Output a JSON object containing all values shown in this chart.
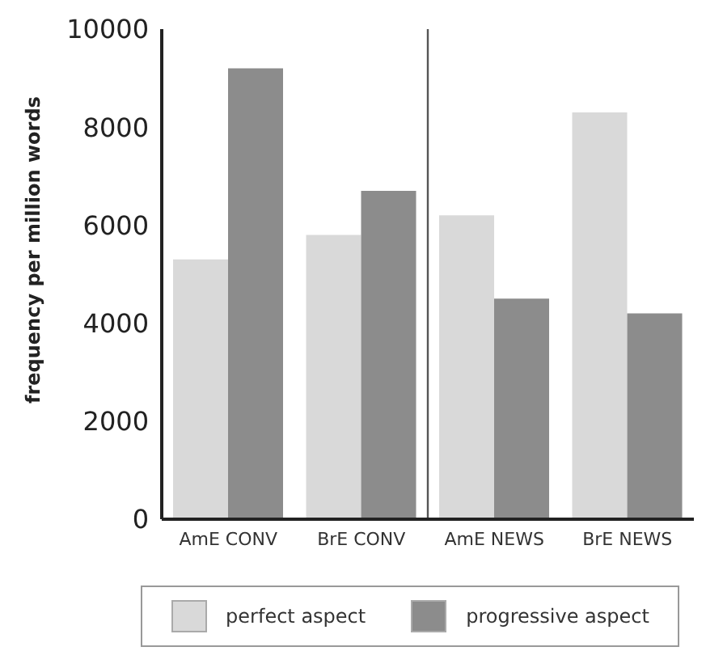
{
  "chart_data": {
    "type": "bar",
    "ylabel": "frequency per million words",
    "categories": [
      "AmE CONV",
      "BrE CONV",
      "AmE NEWS",
      "BrE NEWS"
    ],
    "series": [
      {
        "name": "perfect aspect",
        "color": "#d9d9d9",
        "values": [
          5300,
          5800,
          6200,
          8300
        ]
      },
      {
        "name": "progressive aspect",
        "color": "#8c8c8c",
        "values": [
          9200,
          6700,
          4500,
          4200
        ]
      }
    ],
    "ylim": [
      0,
      10000
    ],
    "yticks": [
      0,
      2000,
      4000,
      6000,
      8000,
      10000
    ],
    "grid": false,
    "legend": "bottom"
  }
}
